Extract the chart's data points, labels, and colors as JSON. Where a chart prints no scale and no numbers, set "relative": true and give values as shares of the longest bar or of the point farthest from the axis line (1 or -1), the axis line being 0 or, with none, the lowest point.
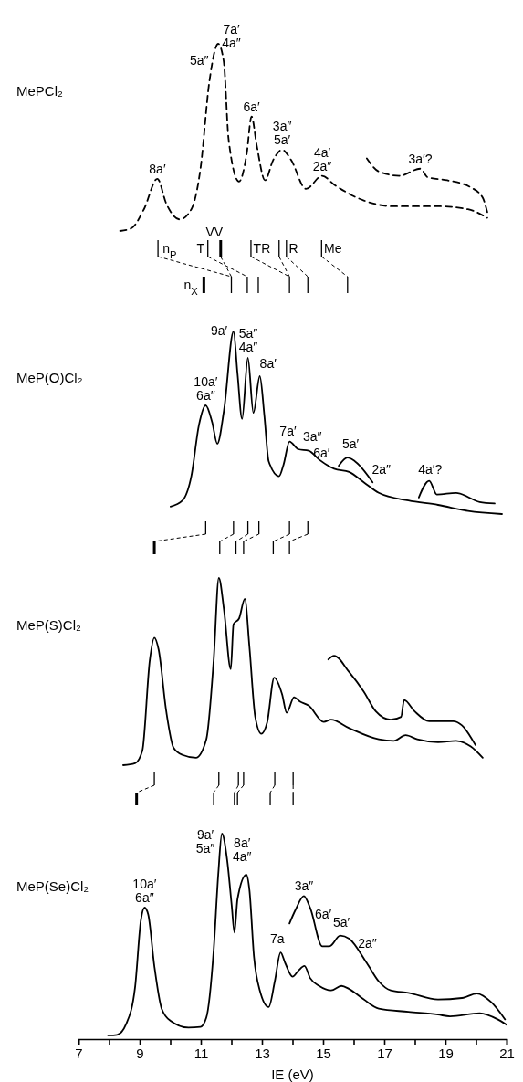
{
  "chart_data": [
    {
      "type": "line",
      "title": "MePCl₂",
      "xlim": [
        7,
        21
      ],
      "relative": true,
      "tick_labels": false,
      "line_style": "dashed",
      "series": [
        {
          "color": "#000000",
          "x": [
            8.36,
            8.74,
            9.14,
            9.58,
            9.87,
            10.31,
            10.69,
            10.99,
            11.28,
            11.57,
            11.75,
            11.91,
            12.25,
            12.5,
            12.66,
            12.83,
            13.1,
            13.37,
            13.66,
            13.95,
            14.44,
            14.97,
            15.36,
            16.33,
            17.31,
            18.76,
            19.74,
            20.37
          ],
          "values": [
            0,
            0.016,
            0.116,
            0.279,
            0.147,
            0.062,
            0.116,
            0.333,
            0.798,
            1,
            0.907,
            0.488,
            0.264,
            0.411,
            0.612,
            0.457,
            0.271,
            0.38,
            0.434,
            0.38,
            0.225,
            0.295,
            0.248,
            0.163,
            0.132,
            0.132,
            0.116,
            0.07
          ]
        },
        {
          "color": "#000000",
          "x": [
            16.43,
            16.82,
            17.5,
            18.18,
            18.42,
            19.06,
            19.83,
            20.22,
            20.37
          ],
          "values": [
            0.388,
            0.318,
            0.295,
            0.333,
            0.287,
            0.271,
            0.233,
            0.178,
            0.101
          ]
        }
      ],
      "annotations": [
        {
          "text": "8a′",
          "x": 9.58,
          "y": 0.279
        },
        "5a″",
        "7a′\n4a″",
        {
          "text": "6a′",
          "x": 12.66,
          "y": 0.612
        },
        {
          "text": "3a″\n5a′",
          "x": 13.66,
          "y": 0.434
        },
        {
          "text": "4a′\n2a″",
          "x": 14.97,
          "y": 0.295
        },
        {
          "text": "3a′?",
          "x": 18.18,
          "y": 0.333
        },
        "n$_{P}$",
        "T",
        "VV",
        "TR",
        "R",
        "Me",
        "n$_{X}$"
      ]
    },
    {
      "type": "line",
      "title": "MeP(O)Cl₂",
      "xlim": [
        7,
        21
      ],
      "relative": true,
      "tick_labels": false,
      "series": [
        {
          "color": "#000000",
          "x": [
            10.01,
            10.4,
            10.69,
            10.94,
            11.16,
            11.37,
            11.54,
            11.76,
            12.07,
            12.2,
            12.35,
            12.54,
            12.72,
            12.93,
            13.08,
            13.22,
            13.56,
            13.71,
            13.9,
            14.19,
            14.53,
            14.87,
            15.36,
            15.85,
            16.33,
            16.82,
            17.79,
            18.76,
            19.74,
            20.85
          ],
          "values": [
            0.041,
            0.074,
            0.207,
            0.488,
            0.595,
            0.504,
            0.385,
            0.57,
            1,
            0.769,
            0.521,
            0.855,
            0.554,
            0.755,
            0.537,
            0.289,
            0.207,
            0.273,
            0.397,
            0.355,
            0.347,
            0.298,
            0.248,
            0.231,
            0.174,
            0.116,
            0.074,
            0.05,
            0.017,
            0
          ]
        },
        {
          "color": "#000000",
          "x": [
            15.51,
            15.8,
            16.04,
            16.62
          ],
          "values": [
            0.264,
            0.309,
            0.289,
            0.174
          ]
        },
        {
          "color": "#000000",
          "x": [
            18.13,
            18.47,
            18.72,
            19.35,
            20.12,
            20.61
          ],
          "values": [
            0.091,
            0.182,
            0.107,
            0.116,
            0.066,
            0.058
          ]
        }
      ],
      "annotations": [
        {
          "text": "10a′\n6a″",
          "x": 11.16,
          "y": 0.595
        },
        "9a′",
        {
          "text": "5a″\n4a″",
          "x": 12.55,
          "y": 0.86
        },
        "8a′",
        {
          "text": "7a′",
          "x": 13.85,
          "y": 0.4
        },
        "3a″",
        {
          "text": "6a′",
          "x": 14.95,
          "y": 0.28
        },
        {
          "text": "5a′",
          "x": 15.9,
          "y": 0.33
        },
        "2a″",
        {
          "text": "4a′?",
          "x": 18.5,
          "y": 0.19
        }
      ]
    },
    {
      "type": "line",
      "title": "MeP(S)Cl₂",
      "xlim": [
        7,
        21
      ],
      "relative": true,
      "tick_labels": false,
      "series": [
        {
          "color": "#000000",
          "x": [
            8.46,
            8.85,
            9.09,
            9.33,
            9.48,
            9.62,
            9.87,
            10.11,
            10.4,
            10.84,
            11.18,
            11.42,
            11.59,
            11.76,
            11.98,
            12.07,
            12.25,
            12.44,
            12.59,
            12.78,
            12.98,
            13.17,
            13.4,
            13.66,
            13.81,
            14.05,
            14.24,
            14.53,
            15.02,
            15.26,
            15.85,
            16.82,
            17.31,
            17.7,
            18.08,
            18.76,
            19.35,
            19.83,
            20.22
          ],
          "values": [
            0,
            0.01,
            0.078,
            0.558,
            0.681,
            0.618,
            0.288,
            0.093,
            0.055,
            0.04,
            0.138,
            0.558,
            1,
            0.828,
            0.513,
            0.753,
            0.783,
            0.888,
            0.633,
            0.258,
            0.168,
            0.228,
            0.468,
            0.378,
            0.28,
            0.363,
            0.34,
            0.318,
            0.231,
            0.243,
            0.198,
            0.138,
            0.13,
            0.16,
            0.138,
            0.123,
            0.13,
            0.1,
            0.04
          ]
        },
        {
          "color": "#000000",
          "x": [
            15.17,
            15.36,
            15.85,
            16.33,
            16.72,
            17.21,
            17.55,
            17.65,
            17.99,
            18.47,
            19.25,
            19.54,
            19.98
          ],
          "values": [
            0.565,
            0.585,
            0.498,
            0.393,
            0.288,
            0.243,
            0.258,
            0.348,
            0.288,
            0.235,
            0.235,
            0.213,
            0.108
          ]
        }
      ]
    },
    {
      "type": "line",
      "title": "MeP(Se)Cl₂",
      "xlim": [
        7,
        21
      ],
      "relative": true,
      "tick_labels": "x",
      "xlabel": "IE (eV)",
      "xticks": [
        7,
        {
          "value": 8,
          "label": null
        },
        9,
        {
          "value": 10,
          "label": null
        },
        11,
        {
          "value": 12,
          "label": null
        },
        13,
        {
          "value": 14,
          "label": null
        },
        15,
        {
          "value": 16,
          "label": null
        },
        17,
        {
          "value": 18,
          "label": null
        },
        19,
        {
          "value": 20,
          "label": null
        },
        21
      ],
      "series": [
        {
          "color": "#000000",
          "x": [
            7.97,
            8.26,
            8.56,
            8.85,
            9.04,
            9.16,
            9.28,
            9.48,
            9.72,
            10.01,
            10.6,
            10.99,
            11.18,
            11.42,
            11.57,
            11.69,
            11.86,
            12.01,
            12.1,
            12.2,
            12.49,
            12.59,
            12.74,
            12.93,
            13.22,
            13.42,
            13.61,
            13.76,
            14.0,
            14.19,
            14.39,
            14.58,
            14.87,
            15.26,
            15.6,
            15.85,
            16.33,
            16.82,
            17.79,
            18.76,
            19.15,
            20.12,
            20.71,
            21.0
          ],
          "values": [
            0.018,
            0.021,
            0.074,
            0.252,
            0.578,
            0.64,
            0.607,
            0.356,
            0.148,
            0.089,
            0.056,
            0.059,
            0.104,
            0.43,
            0.8,
            1,
            0.874,
            0.652,
            0.519,
            0.681,
            0.8,
            0.726,
            0.4,
            0.237,
            0.156,
            0.281,
            0.422,
            0.37,
            0.304,
            0.333,
            0.356,
            0.296,
            0.259,
            0.237,
            0.259,
            0.244,
            0.193,
            0.148,
            0.133,
            0.119,
            0.111,
            0.126,
            0.096,
            0.07
          ]
        },
        {
          "color": "#000000",
          "x": [
            13.9,
            14.1,
            14.37,
            14.58,
            14.97,
            15.21,
            15.56,
            15.85,
            16.43,
            16.82,
            17.21,
            17.79,
            18.76,
            19.54,
            20.03,
            20.51,
            20.95
          ],
          "values": [
            0.563,
            0.63,
            0.696,
            0.637,
            0.452,
            0.452,
            0.504,
            0.489,
            0.37,
            0.281,
            0.237,
            0.225,
            0.193,
            0.2,
            0.222,
            0.178,
            0.096
          ]
        }
      ],
      "annotations": [
        {
          "text": "10a′\n6a″",
          "x": 9.16,
          "y": 0.64
        },
        "9a′\n5a″",
        "8a′\n4a″",
        {
          "text": "7a",
          "x": 13.5,
          "y": 0.44
        },
        {
          "text": "3a″",
          "x": 14.37,
          "y": 0.7
        },
        "6a′",
        {
          "text": "5a′",
          "x": 15.6,
          "y": 0.52
        },
        "2a″"
      ]
    }
  ]
}
